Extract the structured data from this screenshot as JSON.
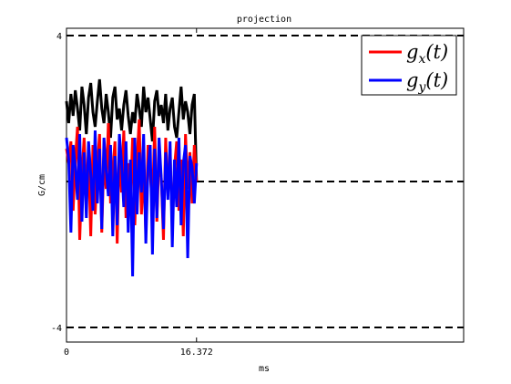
{
  "chart_data": {
    "type": "line",
    "title": "projection",
    "xlabel": "ms",
    "ylabel": "G/cm",
    "xlim": [
      0,
      50
    ],
    "ylim": [
      -4.4,
      4.2
    ],
    "x_ticks": [
      {
        "value": 0,
        "label": "0"
      },
      {
        "value": 16.372,
        "label": "16.372"
      }
    ],
    "y_ticks": [
      {
        "value": 4,
        "label": "4"
      },
      {
        "value": -4,
        "label": "-4"
      }
    ],
    "reference_lines": [
      4,
      0,
      -4
    ],
    "legend": {
      "position": "top-right",
      "entries": [
        {
          "name": "g",
          "subscript": "x",
          "arg": "(t)",
          "color": "#ff0000"
        },
        {
          "name": "g",
          "subscript": "y",
          "arg": "(t)",
          "color": "#0000ff"
        }
      ]
    },
    "series": [
      {
        "color": "#000000",
        "x_start": 0,
        "x_end": 16.372,
        "values": [
          2.2,
          1.6,
          2.4,
          1.8,
          2.5,
          2.0,
          1.4,
          2.6,
          2.1,
          1.3,
          2.3,
          2.7,
          1.9,
          1.5,
          2.2,
          2.8,
          2.0,
          1.6,
          2.4,
          1.9,
          1.2,
          2.3,
          2.6,
          1.7,
          2.0,
          1.4,
          2.1,
          2.5,
          1.8,
          1.3,
          1.9,
          1.6,
          2.4,
          2.0,
          1.5,
          2.6,
          1.9,
          2.3,
          1.7,
          1.1,
          2.2,
          2.5,
          1.8,
          2.1,
          1.6,
          2.4,
          1.4,
          2.0,
          2.3,
          1.5,
          1.2,
          1.9,
          2.6,
          1.7,
          2.2,
          1.9,
          1.3,
          2.1,
          2.4,
          0.0
        ]
      },
      {
        "color": "#ff0000",
        "x_start": 0,
        "x_end": 16.372,
        "values": [
          0.9,
          0.5,
          1.1,
          -0.8,
          0.6,
          1.5,
          -1.6,
          0.2,
          1.2,
          -0.4,
          0.8,
          -1.5,
          1.0,
          -0.9,
          0.4,
          1.3,
          -1.4,
          0.7,
          -0.2,
          1.6,
          -0.6,
          0.3,
          1.1,
          -1.7,
          0.9,
          -0.3,
          1.4,
          -1.0,
          0.5,
          -0.5,
          1.2,
          -1.2,
          0.6,
          1.7,
          -0.9,
          0.3,
          -1.4,
          1.0,
          0.2,
          -0.7,
          1.5,
          -1.1,
          0.7,
          0.1,
          -1.6,
          1.2,
          -0.4,
          0.9,
          -1.3,
          0.4,
          1.1,
          -0.8,
          0.6,
          -1.5,
          1.3,
          -0.2,
          0.8,
          -0.6,
          1.0,
          0.0
        ]
      },
      {
        "color": "#0000ff",
        "x_start": 0,
        "x_end": 16.372,
        "values": [
          1.2,
          0.6,
          -1.4,
          1.0,
          0.4,
          -0.5,
          1.3,
          -1.1,
          0.8,
          -1.0,
          1.1,
          0.2,
          -0.8,
          1.4,
          -0.6,
          0.9,
          -1.3,
          1.2,
          0.3,
          -0.4,
          1.0,
          -1.5,
          0.7,
          -1.2,
          1.3,
          0.5,
          -0.7,
          1.1,
          -1.4,
          0.6,
          -2.6,
          1.2,
          -0.9,
          0.8,
          -0.3,
          1.3,
          -1.7,
          0.4,
          1.0,
          -2.0,
          0.9,
          -1.0,
          1.2,
          0.1,
          -1.3,
          0.8,
          -0.5,
          1.1,
          -1.8,
          0.6,
          -0.7,
          1.2,
          -1.2,
          0.5,
          1.0,
          -2.1,
          0.7,
          0.4,
          -0.6,
          0.5
        ]
      }
    ]
  }
}
